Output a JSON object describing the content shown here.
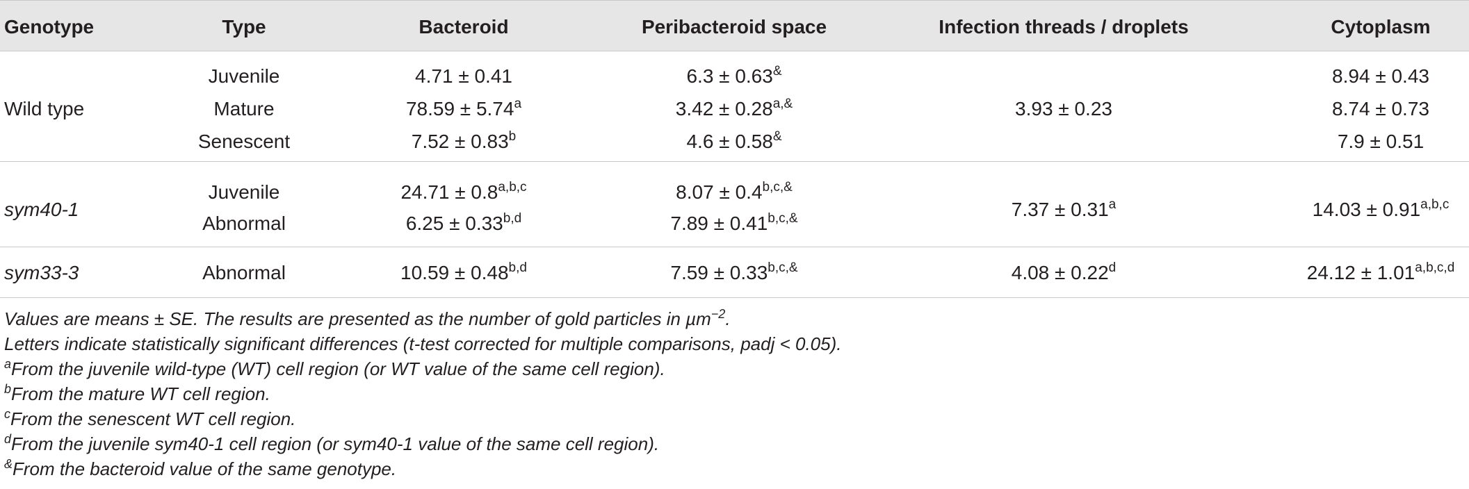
{
  "headers": {
    "genotype": "Genotype",
    "type": "Type",
    "bacteroid": "Bacteroid",
    "peribacteroid": "Peribacteroid space",
    "infection": "Infection threads / droplets",
    "cytoplasm": "Cytoplasm"
  },
  "groups": [
    {
      "genotype": "Wild type",
      "rows": [
        {
          "type": "Juvenile",
          "bacteroid": "4.71 ± 0.41",
          "bacteroid_sup": "",
          "peri": "6.3 ± 0.63",
          "peri_sup": "&",
          "cyto": "8.94 ± 0.43",
          "cyto_sup": ""
        },
        {
          "type": "Mature",
          "bacteroid": "78.59 ± 5.74",
          "bacteroid_sup": "a",
          "peri": "3.42 ± 0.28",
          "peri_sup": "a,&",
          "cyto": "8.74 ± 0.73",
          "cyto_sup": ""
        },
        {
          "type": "Senescent",
          "bacteroid": "7.52 ± 0.83",
          "bacteroid_sup": "b",
          "peri": "4.6 ± 0.58",
          "peri_sup": "&",
          "cyto": "7.9 ± 0.51",
          "cyto_sup": ""
        }
      ],
      "infection": "3.93 ± 0.23",
      "infection_sup": ""
    },
    {
      "genotype": "sym40-1",
      "rows": [
        {
          "type": "Juvenile",
          "bacteroid": "24.71 ± 0.8",
          "bacteroid_sup": "a,b,c",
          "peri": "8.07 ± 0.4",
          "peri_sup": "b,c,&"
        },
        {
          "type": "Abnormal",
          "bacteroid": "6.25 ± 0.33",
          "bacteroid_sup": "b,d",
          "peri": "7.89 ± 0.41",
          "peri_sup": "b,c,&"
        }
      ],
      "infection": "7.37 ± 0.31",
      "infection_sup": "a",
      "cyto": "14.03 ± 0.91",
      "cyto_sup": "a,b,c"
    },
    {
      "genotype": "sym33-3",
      "rows": [
        {
          "type": "Abnormal",
          "bacteroid": "10.59 ± 0.48",
          "bacteroid_sup": "b,d",
          "peri": "7.59 ± 0.33",
          "peri_sup": "b,c,&"
        }
      ],
      "infection": "4.08 ± 0.22",
      "infection_sup": "d",
      "cyto": "24.12 ± 1.01",
      "cyto_sup": "a,b,c,d"
    }
  ],
  "notes": {
    "line1_prefix": "Values are means ± SE. The results are presented as the number of gold particles in µm",
    "line1_sup": "−2",
    "line1_suffix": ".",
    "line2": "Letters indicate statistically significant differences (t-test corrected for multiple comparisons, padj < 0.05).",
    "a_mark": "a",
    "a_text": "From the juvenile wild-type (WT) cell region (or WT value of the same cell region).",
    "b_mark": "b",
    "b_text": "From the mature WT cell region.",
    "c_mark": "c",
    "c_text": "From the senescent WT cell region.",
    "d_mark": "d",
    "d_text": "From the juvenile sym40-1 cell region (or sym40-1 value of the same cell region).",
    "amp_mark": "&",
    "amp_text": "From the bacteroid value of the same genotype."
  }
}
